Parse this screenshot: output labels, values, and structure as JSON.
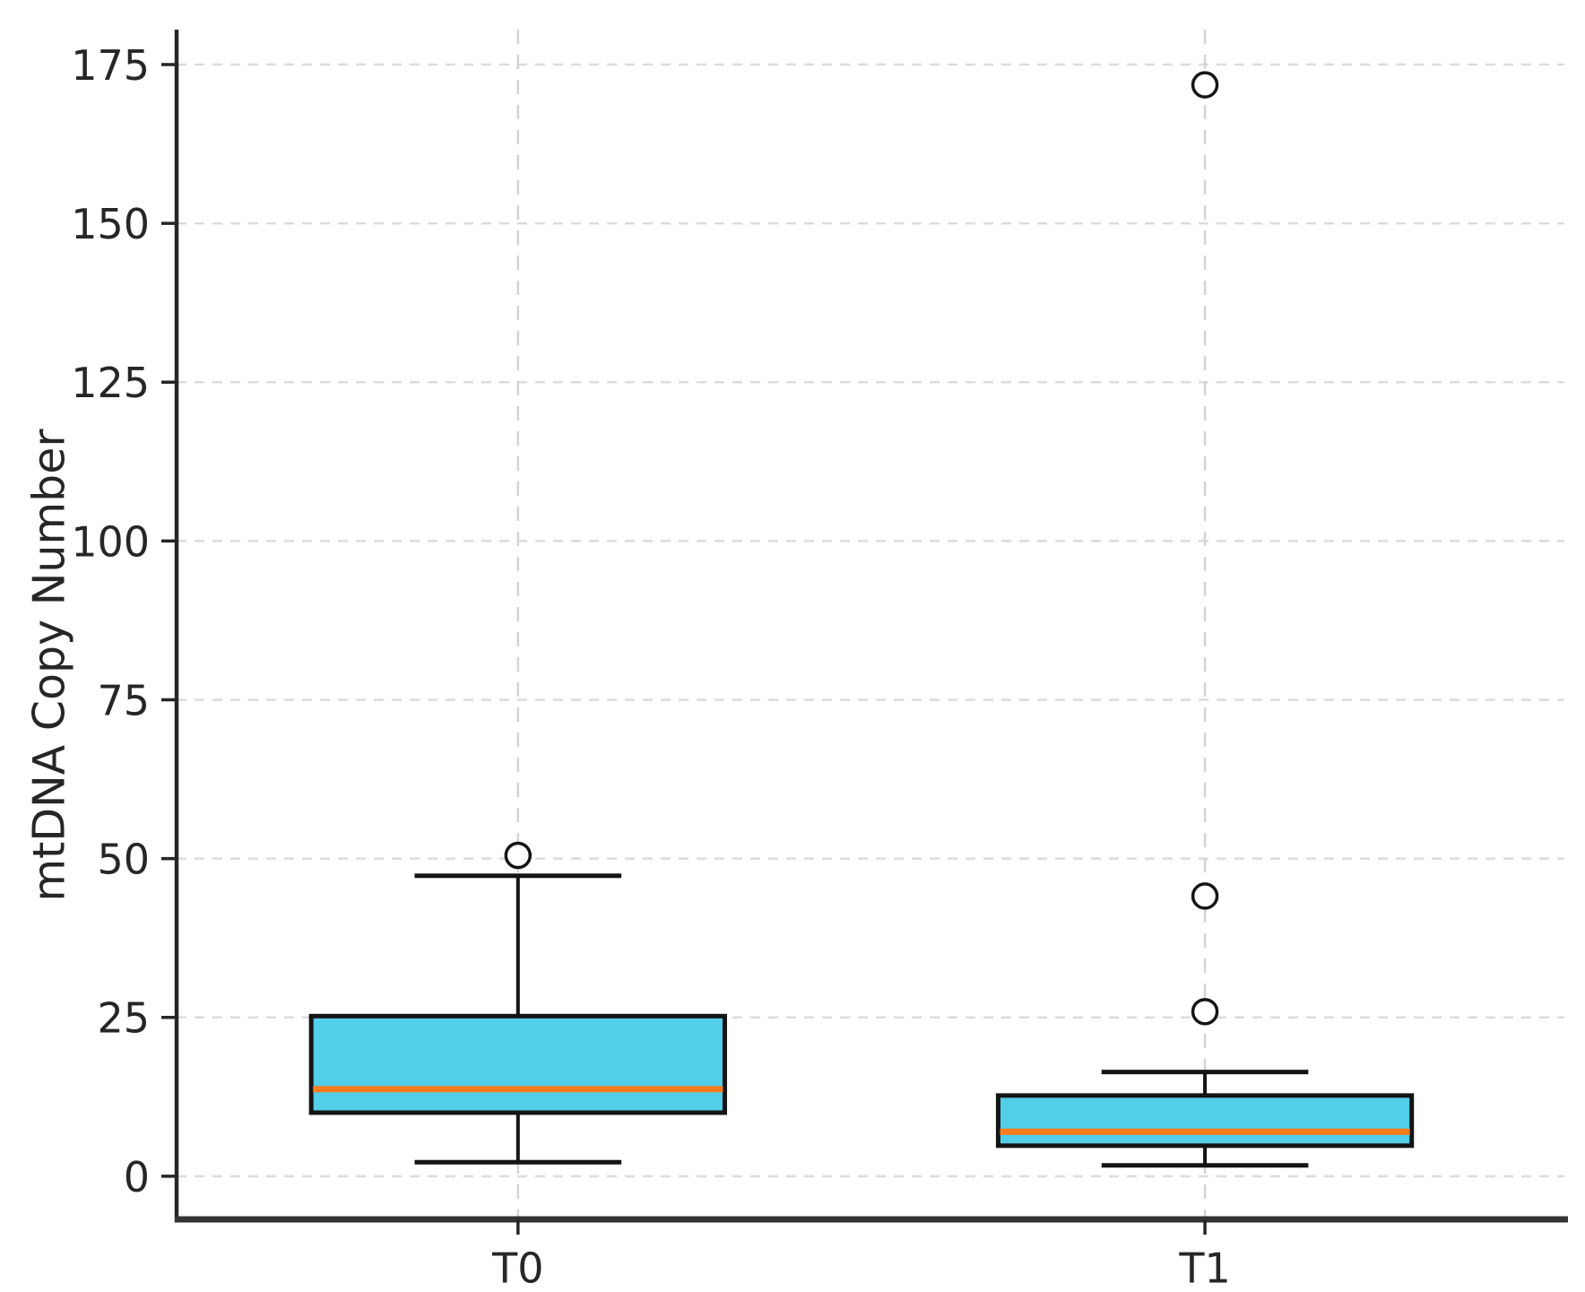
{
  "chart_data": {
    "type": "box",
    "title": "",
    "xlabel": "",
    "ylabel": "mtDNA Copy Number",
    "categories": [
      "T0",
      "T1"
    ],
    "yticks": [
      0,
      25,
      50,
      75,
      100,
      125,
      150,
      175
    ],
    "ylim": [
      -6.8,
      180.5
    ],
    "grid": true,
    "legend": false,
    "box_width_fraction": 0.298,
    "cap_width_ratio": 0.5,
    "series": [
      {
        "label": "T0",
        "x_fraction": 0.246,
        "whislo": 2.2,
        "q1": 10.0,
        "med": 13.7,
        "q3": 25.2,
        "whishi": 47.3,
        "fliers": [
          50.5
        ]
      },
      {
        "label": "T1",
        "x_fraction": 0.741,
        "whislo": 1.7,
        "q1": 4.8,
        "med": 7.0,
        "q3": 12.7,
        "whishi": 16.4,
        "fliers": [
          25.9,
          44.1,
          171.8
        ]
      }
    ],
    "colors": {
      "box_fill": "#53CEE8",
      "median": "#F87B1D",
      "line": "#141414",
      "grid_h": "#DCDCDC",
      "grid_v": "#D3D3D3",
      "spine": "#262626",
      "axis_bottom": "#333333",
      "text": "#262626",
      "flier_fill": "#FFFFFF",
      "background": "#FFFFFF"
    }
  }
}
